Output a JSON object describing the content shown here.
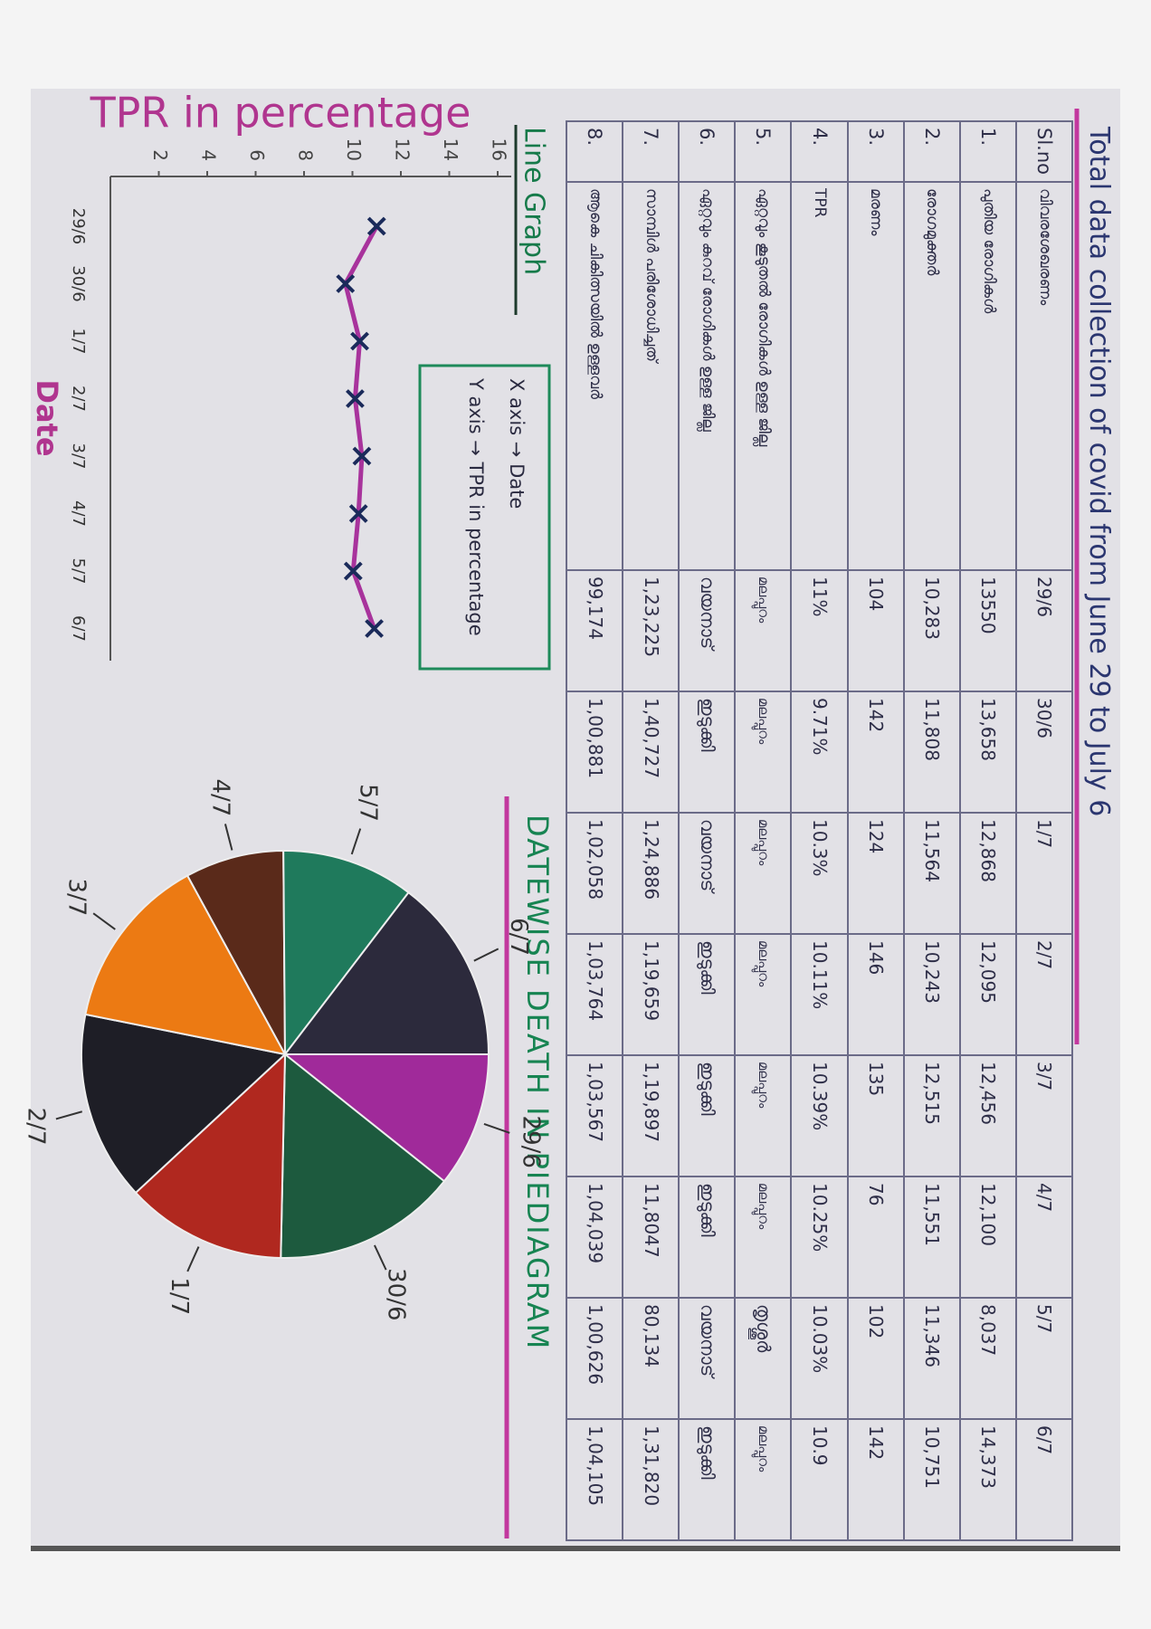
{
  "title": "Total data collection of covid from June 29 to July 6",
  "table": {
    "header": [
      "Sl.no",
      "വിവരശേഖരണം",
      "29/6",
      "30/6",
      "1/7",
      "2/7",
      "3/7",
      "4/7",
      "5/7",
      "6/7"
    ],
    "rows": [
      [
        "1.",
        "പുതിയ രോഗികൾ",
        "13550",
        "13,658",
        "12,868",
        "12,095",
        "12,456",
        "12,100",
        "8,037",
        "14,373"
      ],
      [
        "2.",
        "രോഗമുക്തർ",
        "10,283",
        "11,808",
        "11,564",
        "10,243",
        "12,515",
        "11,551",
        "11,346",
        "10,751"
      ],
      [
        "3.",
        "മരണം",
        "104",
        "142",
        "124",
        "146",
        "135",
        "76",
        "102",
        "142"
      ],
      [
        "4.",
        "TPR",
        "11%",
        "9.71%",
        "10.3%",
        "10.11%",
        "10.39%",
        "10.25%",
        "10.03%",
        "10.9"
      ],
      [
        "5.",
        "ഏറ്റവും കൂടുതൽ രോഗികൾ ഉള്ള ജില്ല",
        "മലപ്പുറം",
        "മലപ്പുറം",
        "മലപ്പുറം",
        "മലപ്പുറം",
        "മലപ്പുറം",
        "മലപ്പുറം",
        "തൃശ്ശൂർ",
        "മലപ്പുറം"
      ],
      [
        "6.",
        "ഏറ്റവും കുറവ് രോഗികൾ ഉള്ള ജില്ല",
        "വയനാട്",
        "ഇടുക്കി",
        "വയനാട്",
        "ഇടുക്കി",
        "ഇടുക്കി",
        "ഇടുക്കി",
        "വയനാട്",
        "ഇടുക്കി"
      ],
      [
        "7.",
        "സാമ്പിൾ പരിശോധിച്ചത്",
        "1,23,225",
        "1,40,727",
        "1,24,886",
        "1,19,659",
        "1,19,897",
        "11,8047",
        "80,134",
        "1,31,820"
      ],
      [
        "8.",
        "ആകെ ചികിത്സയിൽ ഉള്ളവർ",
        "99,174",
        "1,00,881",
        "1,02,058",
        "1,03,764",
        "1,03,567",
        "1,04,039",
        "1,00,626",
        "1,04,105"
      ]
    ]
  },
  "chart_data": [
    {
      "type": "line",
      "title": "Line Graph",
      "y_label": "TPR in percentage",
      "x_label": "Date",
      "legend_text": [
        "X axis → Date",
        "Y axis → TPR in percentage"
      ],
      "categories": [
        "29/6",
        "30/6",
        "1/7",
        "2/7",
        "3/7",
        "4/7",
        "5/7",
        "6/7"
      ],
      "values": [
        11,
        9.71,
        10.3,
        10.11,
        10.39,
        10.25,
        10.03,
        10.9
      ],
      "color": "#a8339c",
      "ylim": [
        0,
        16
      ],
      "yticks": [
        2,
        4,
        6,
        8,
        10,
        12,
        14,
        16
      ]
    },
    {
      "type": "pie",
      "title": "DATEWISE DEATH IN PIEDIAGRAM",
      "categories": [
        "29/6",
        "30/6",
        "1/7",
        "2/7",
        "3/7",
        "4/7",
        "5/7",
        "6/7"
      ],
      "values": [
        104,
        142,
        124,
        146,
        135,
        76,
        102,
        142
      ],
      "colors": [
        "#a02a9a",
        "#1d5a3e",
        "#b0281f",
        "#1e1e26",
        "#ec7a13",
        "#5a2a1a",
        "#1f7a5c",
        "#2c2a3c"
      ]
    }
  ]
}
